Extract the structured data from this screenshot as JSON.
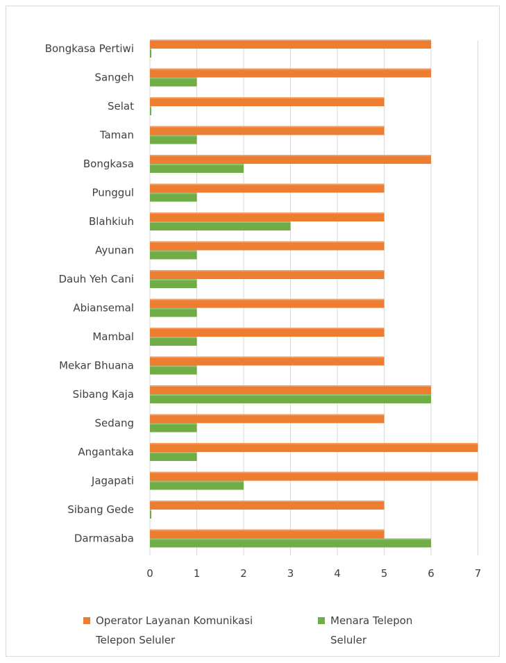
{
  "chart_data": {
    "type": "bar",
    "orientation": "horizontal",
    "categories": [
      "Bongkasa Pertiwi",
      "Sangeh",
      "Selat",
      "Taman",
      "Bongkasa",
      "Punggul",
      "Blahkiuh",
      "Ayunan",
      "Dauh Yeh Cani",
      "Abiansemal",
      "Mambal",
      "Mekar Bhuana",
      "Sibang Kaja",
      "Sedang",
      "Angantaka",
      "Jagapati",
      "Sibang Gede",
      "Darmasaba"
    ],
    "series": [
      {
        "name": "Operator Layanan Komunikasi Telepon Seluler",
        "color": "#ed7d31",
        "values": [
          6,
          6,
          5,
          5,
          6,
          5,
          5,
          5,
          5,
          5,
          5,
          5,
          6,
          5,
          7,
          7,
          5,
          5
        ]
      },
      {
        "name": "Menara Telepon Seluler",
        "color": "#70ad47",
        "values": [
          0,
          1,
          0,
          1,
          2,
          1,
          3,
          1,
          1,
          1,
          1,
          1,
          6,
          1,
          1,
          2,
          0,
          6
        ]
      }
    ],
    "xlim": [
      0,
      7
    ],
    "xticks": [
      "0",
      "1",
      "2",
      "3",
      "4",
      "5",
      "6",
      "7"
    ],
    "grid": true,
    "legend_position": "bottom",
    "legend_lines": [
      [
        "Operator Layanan Komunikasi",
        "Telepon Seluler"
      ],
      [
        "Menara Telepon",
        "Seluler"
      ]
    ]
  }
}
